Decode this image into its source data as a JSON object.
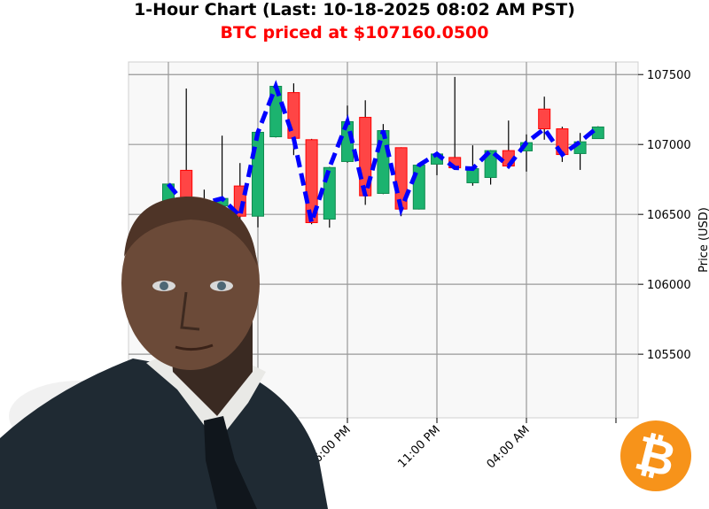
{
  "title": "1-Hour Chart (Last: 10-18-2025 08:02 AM PST)",
  "subtitle": "BTC priced at $107160.0500",
  "colors": {
    "up": "#1cb36f",
    "down": "#ff4545",
    "line": "#0000ff",
    "title": "#000000",
    "subtitle": "#ff0000",
    "coin": "#f7931a",
    "plot_bg": "#f8f8f8"
  },
  "icons": {
    "coin": "bitcoin-logo-icon",
    "avatar": "businessman-avatar"
  },
  "chart_data": {
    "type": "candlestick",
    "title": "1-Hour Chart (Last: 10-18-2025 08:02 AM PST)",
    "ylabel": "Price (USD)",
    "xlabel": "",
    "ylim": [
      105045,
      107590
    ],
    "yticks": [
      105500,
      106000,
      106500,
      107000,
      107500
    ],
    "xticks": [
      {
        "hour_index": 15,
        "label": ""
      },
      {
        "hour_index": 10,
        "label": "06:00 PM"
      },
      {
        "hour_index": 15,
        "label": "11:00 PM"
      },
      {
        "hour_index": 20,
        "label": "04:00 AM"
      },
      {
        "hour_index": 25,
        "label": ""
      }
    ],
    "grid": true,
    "overlay_line": "close values, blue dashed",
    "candles": [
      {
        "t": "08:00 AM",
        "o": 106520,
        "h": 106720,
        "l": 106480,
        "c": 106717
      },
      {
        "t": "09:00 AM",
        "o": 106815,
        "h": 107400,
        "l": 106520,
        "c": 106560
      },
      {
        "t": "10:00 AM",
        "o": 106600,
        "h": 106677,
        "l": 106540,
        "c": 106580
      },
      {
        "t": "11:00 AM",
        "o": 106560,
        "h": 107063,
        "l": 106520,
        "c": 106614
      },
      {
        "t": "12:00 PM",
        "o": 106703,
        "h": 106867,
        "l": 106460,
        "c": 106487
      },
      {
        "t": "01:00 PM",
        "o": 106487,
        "h": 107090,
        "l": 106407,
        "c": 107087
      },
      {
        "t": "02:00 PM",
        "o": 107055,
        "h": 107450,
        "l": 107050,
        "c": 107416
      },
      {
        "t": "03:00 PM",
        "o": 107371,
        "h": 107437,
        "l": 106924,
        "c": 107044
      },
      {
        "t": "04:00 PM",
        "o": 107034,
        "h": 107040,
        "l": 106430,
        "c": 106441
      },
      {
        "t": "05:00 PM",
        "o": 106466,
        "h": 106840,
        "l": 106405,
        "c": 106835
      },
      {
        "t": "06:00 PM",
        "o": 106878,
        "h": 107278,
        "l": 106870,
        "c": 107163
      },
      {
        "t": "07:00 PM",
        "o": 107194,
        "h": 107316,
        "l": 106568,
        "c": 106633
      },
      {
        "t": "08:00 PM",
        "o": 106650,
        "h": 107146,
        "l": 106645,
        "c": 107099
      },
      {
        "t": "09:00 PM",
        "o": 106977,
        "h": 106980,
        "l": 106487,
        "c": 106538
      },
      {
        "t": "10:00 PM",
        "o": 106538,
        "h": 106860,
        "l": 106535,
        "c": 106852
      },
      {
        "t": "11:00 PM",
        "o": 106859,
        "h": 106935,
        "l": 106780,
        "c": 106932
      },
      {
        "t": "12:00 AM",
        "o": 106907,
        "h": 107483,
        "l": 106830,
        "c": 106833
      },
      {
        "t": "01:00 AM",
        "o": 106726,
        "h": 106994,
        "l": 106705,
        "c": 106827
      },
      {
        "t": "02:00 AM",
        "o": 106764,
        "h": 106960,
        "l": 106713,
        "c": 106956
      },
      {
        "t": "03:00 AM",
        "o": 106956,
        "h": 107171,
        "l": 106840,
        "c": 106846
      },
      {
        "t": "04:00 AM",
        "o": 106954,
        "h": 107072,
        "l": 106806,
        "c": 107013
      },
      {
        "t": "05:00 AM",
        "o": 107253,
        "h": 107342,
        "l": 107034,
        "c": 107112
      },
      {
        "t": "06:00 AM",
        "o": 107112,
        "h": 107127,
        "l": 106875,
        "c": 106928
      },
      {
        "t": "07:00 AM",
        "o": 106935,
        "h": 107082,
        "l": 106818,
        "c": 107019
      },
      {
        "t": "08:00 AM",
        "o": 107042,
        "h": 107130,
        "l": 107040,
        "c": 107125
      }
    ]
  }
}
